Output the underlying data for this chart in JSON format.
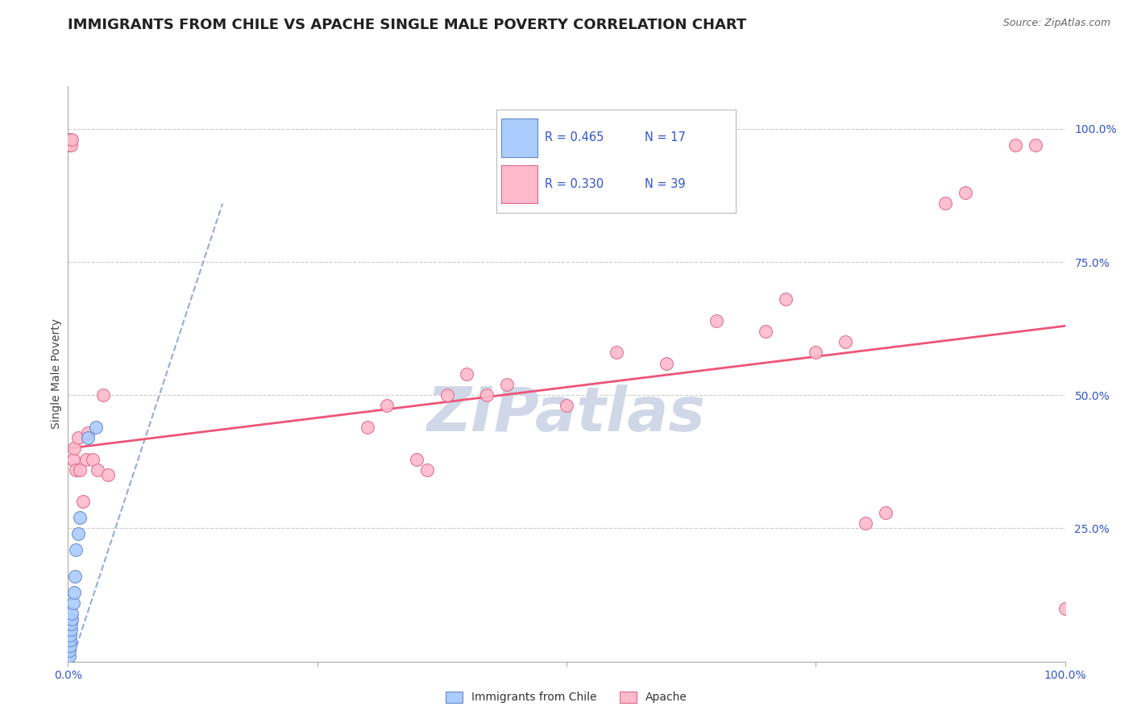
{
  "title": "IMMIGRANTS FROM CHILE VS APACHE SINGLE MALE POVERTY CORRELATION CHART",
  "source": "Source: ZipAtlas.com",
  "ylabel": "Single Male Poverty",
  "watermark": "ZIPatlas",
  "legend_blue_r": "R = 0.465",
  "legend_blue_n": "N = 17",
  "legend_pink_r": "R = 0.330",
  "legend_pink_n": "N = 39",
  "legend_blue_label": "Immigrants from Chile",
  "legend_pink_label": "Apache",
  "xlim": [
    0,
    1.0
  ],
  "ylim": [
    0,
    1.08
  ],
  "xticks": [
    0.0,
    0.25,
    0.5,
    0.75,
    1.0
  ],
  "xtick_labels": [
    "0.0%",
    "",
    "",
    "",
    "100.0%"
  ],
  "ytick_positions": [
    0.25,
    0.5,
    0.75,
    1.0
  ],
  "ytick_labels": [
    "25.0%",
    "50.0%",
    "75.0%",
    "100.0%"
  ],
  "blue_scatter_x": [
    0.001,
    0.001,
    0.002,
    0.002,
    0.002,
    0.003,
    0.003,
    0.004,
    0.004,
    0.005,
    0.006,
    0.007,
    0.008,
    0.01,
    0.012,
    0.02,
    0.028
  ],
  "blue_scatter_y": [
    0.01,
    0.02,
    0.03,
    0.04,
    0.05,
    0.06,
    0.07,
    0.08,
    0.09,
    0.11,
    0.13,
    0.16,
    0.21,
    0.24,
    0.27,
    0.42,
    0.44
  ],
  "pink_scatter_x": [
    0.001,
    0.002,
    0.003,
    0.004,
    0.005,
    0.006,
    0.008,
    0.01,
    0.012,
    0.015,
    0.018,
    0.02,
    0.025,
    0.03,
    0.035,
    0.04,
    0.3,
    0.32,
    0.35,
    0.36,
    0.38,
    0.4,
    0.42,
    0.44,
    0.5,
    0.55,
    0.6,
    0.65,
    0.7,
    0.72,
    0.75,
    0.78,
    0.8,
    0.82,
    0.88,
    0.9,
    0.95,
    0.97,
    1.0
  ],
  "pink_scatter_y": [
    0.97,
    0.98,
    0.97,
    0.98,
    0.38,
    0.4,
    0.36,
    0.42,
    0.36,
    0.3,
    0.38,
    0.43,
    0.38,
    0.36,
    0.5,
    0.35,
    0.44,
    0.48,
    0.38,
    0.36,
    0.5,
    0.54,
    0.5,
    0.52,
    0.48,
    0.58,
    0.56,
    0.64,
    0.62,
    0.68,
    0.58,
    0.6,
    0.26,
    0.28,
    0.86,
    0.88,
    0.97,
    0.97,
    0.1
  ],
  "blue_line_x": [
    0.0,
    0.155
  ],
  "blue_line_y": [
    -0.02,
    0.86
  ],
  "pink_line_x": [
    0.0,
    1.0
  ],
  "pink_line_y": [
    0.4,
    0.63
  ],
  "title_fontsize": 13,
  "axis_label_fontsize": 10,
  "tick_fontsize": 10,
  "legend_fontsize": 11,
  "blue_color": "#aaccff",
  "pink_color": "#ffbbcc",
  "blue_edge_color": "#6688cc",
  "pink_edge_color": "#dd6688",
  "blue_line_color": "#7799cc",
  "pink_line_color": "#ee5577",
  "watermark_color": "#d0d8e8",
  "background_color": "#ffffff",
  "grid_color": "#cccccc"
}
